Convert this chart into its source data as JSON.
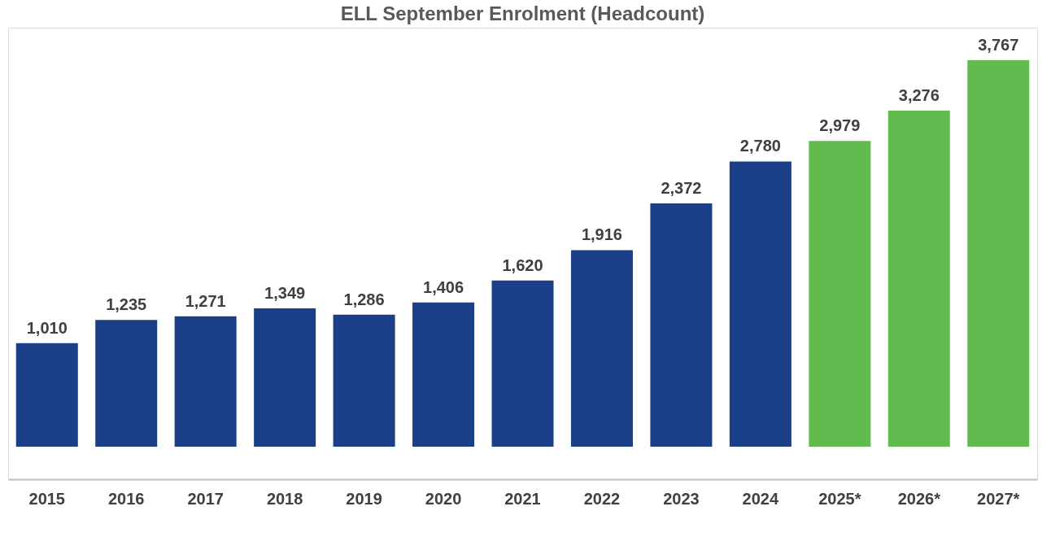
{
  "chart_data": {
    "type": "bar",
    "title": "ELL September Enrolment (Headcount)",
    "categories": [
      "2015",
      "2016",
      "2017",
      "2018",
      "2019",
      "2020",
      "2021",
      "2022",
      "2023",
      "2024",
      "2025*",
      "2026*",
      "2027*"
    ],
    "values": [
      1010,
      1235,
      1271,
      1349,
      1286,
      1406,
      1620,
      1916,
      2372,
      2780,
      2979,
      3276,
      3767
    ],
    "value_labels": [
      "1,010",
      "1,235",
      "1,271",
      "1,349",
      "1,286",
      "1,406",
      "1,620",
      "1,916",
      "2,372",
      "2,780",
      "2,979",
      "3,276",
      "3,767"
    ],
    "colors": [
      "#1b3f87",
      "#1b3f87",
      "#1b3f87",
      "#1b3f87",
      "#1b3f87",
      "#1b3f87",
      "#1b3f87",
      "#1b3f87",
      "#1b3f87",
      "#1b3f87",
      "#62bb4f",
      "#62bb4f",
      "#62bb4f"
    ],
    "grid": false
  }
}
